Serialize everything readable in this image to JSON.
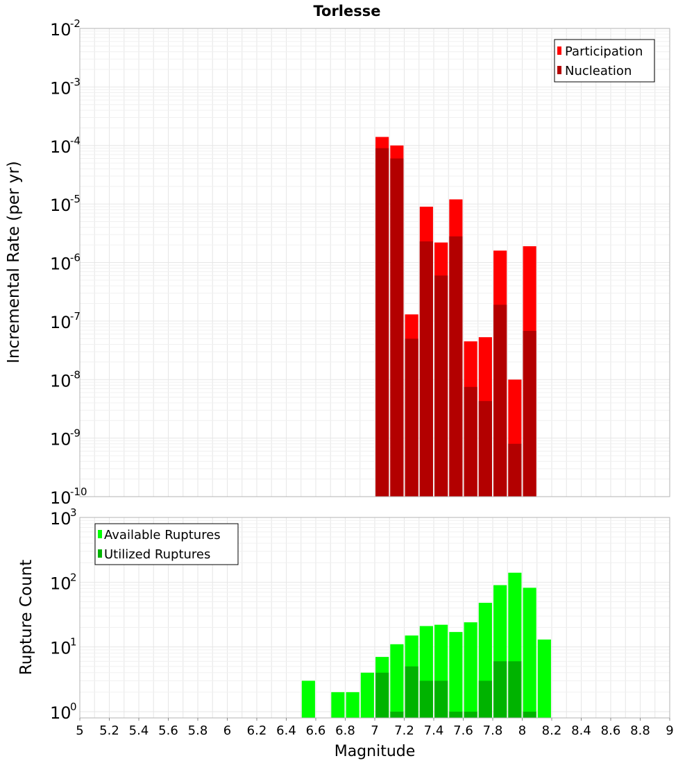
{
  "title": "Torlesse",
  "chart_data": [
    {
      "type": "bar",
      "yscale": "log",
      "ylabel": "Incremental Rate (per yr)",
      "ylim": [
        1e-10,
        0.01
      ],
      "ytick_exponents": [
        "-2",
        "-3",
        "-4",
        "-5",
        "-6",
        "-7",
        "-8",
        "-9",
        "-10"
      ],
      "ytick_base": "10",
      "legend": {
        "position": "top-right",
        "entries": [
          "Participation",
          "Nucleation"
        ]
      },
      "colors": {
        "participation": "#ff0000",
        "nucleation": "#b30000"
      },
      "series": [
        {
          "name": "Participation",
          "x": [
            7.05,
            7.15,
            7.25,
            7.35,
            7.45,
            7.55,
            7.65,
            7.75,
            7.85,
            7.95,
            8.05
          ],
          "values": [
            0.00014,
            0.0001,
            1.3e-07,
            9e-06,
            2.2e-06,
            1.2e-05,
            4.5e-08,
            5.3e-08,
            1.6e-06,
            1e-08,
            1.9e-06
          ]
        },
        {
          "name": "Nucleation",
          "x": [
            7.05,
            7.15,
            7.25,
            7.35,
            7.45,
            7.55,
            7.65,
            7.75,
            7.85,
            7.95,
            8.05
          ],
          "values": [
            9e-05,
            6e-05,
            5e-08,
            2.3e-06,
            6e-07,
            2.8e-06,
            7.5e-09,
            4.3e-09,
            1.9e-07,
            8e-10,
            6.8e-08
          ]
        }
      ]
    },
    {
      "type": "bar",
      "yscale": "log",
      "ylabel": "Rupture Count",
      "ylim": [
        0.8,
        1000
      ],
      "ytick_exponents": [
        "3",
        "2",
        "1",
        "0"
      ],
      "ytick_base": "10",
      "xlabel": "Magnitude",
      "xlim": [
        5,
        9
      ],
      "xticks": [
        "5",
        "5.2",
        "5.4",
        "5.6",
        "5.8",
        "6",
        "6.2",
        "6.4",
        "6.6",
        "6.8",
        "7",
        "7.2",
        "7.4",
        "7.6",
        "7.8",
        "8",
        "8.2",
        "8.4",
        "8.6",
        "8.8",
        "9"
      ],
      "legend": {
        "position": "top-left",
        "entries": [
          "Available Ruptures",
          "Utilized Ruptures"
        ]
      },
      "colors": {
        "available": "#00ff00",
        "utilized": "#00b300"
      },
      "series": [
        {
          "name": "Available Ruptures",
          "x": [
            6.55,
            6.75,
            6.85,
            6.95,
            7.05,
            7.15,
            7.25,
            7.35,
            7.45,
            7.55,
            7.65,
            7.75,
            7.85,
            7.95,
            8.05,
            8.15
          ],
          "values": [
            3,
            2,
            2,
            4,
            7,
            11,
            15,
            21,
            22,
            17,
            24,
            48,
            90,
            140,
            82,
            13
          ]
        },
        {
          "name": "Utilized Ruptures",
          "x": [
            7.05,
            7.15,
            7.25,
            7.35,
            7.45,
            7.55,
            7.65,
            7.75,
            7.85,
            7.95,
            8.05
          ],
          "values": [
            4,
            1,
            5,
            3,
            3,
            1,
            1,
            3,
            6,
            6,
            1
          ]
        }
      ]
    }
  ]
}
